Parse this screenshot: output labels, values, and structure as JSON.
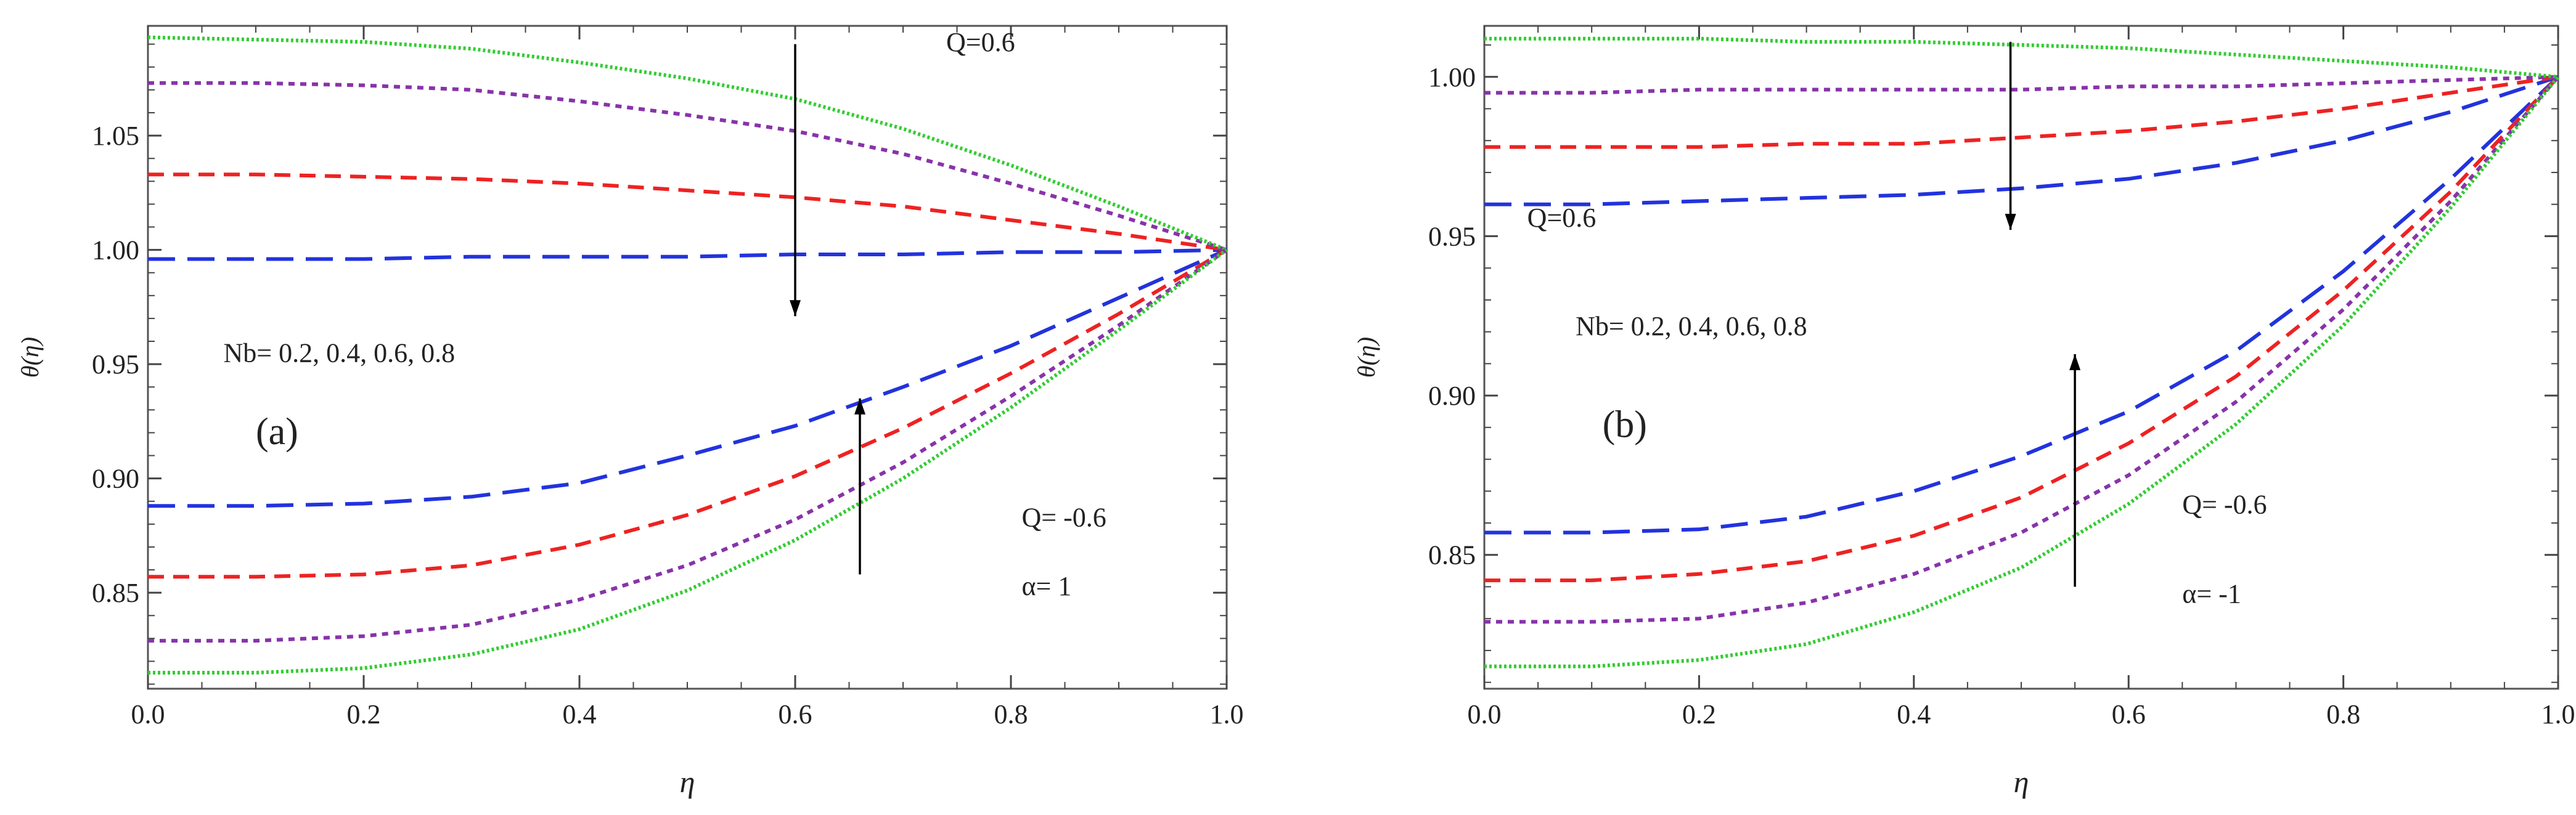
{
  "figure": {
    "panels": [
      "(a)",
      "(b)"
    ]
  },
  "chart_data": [
    {
      "type": "line",
      "panel_label": "(a)",
      "title": "",
      "xlabel": "η",
      "ylabel": "θ(η)",
      "xlim": [
        0.0,
        1.0
      ],
      "ylim": [
        0.808,
        1.098
      ],
      "xticks": [
        "0.0",
        "0.2",
        "0.4",
        "0.6",
        "0.8",
        "1.0"
      ],
      "yticks": [
        "0.85",
        "0.90",
        "0.95",
        "1.00",
        "1.05"
      ],
      "yticks_values": [
        0.85,
        0.9,
        0.95,
        1.0,
        1.05
      ],
      "grid": false,
      "x": [
        0.0,
        0.1,
        0.2,
        0.3,
        0.4,
        0.5,
        0.6,
        0.7,
        0.8,
        0.9,
        1.0
      ],
      "series": [
        {
          "name": "Nb=0.2, Q=0.6",
          "group": "Q=0.6",
          "color": "#2233dd",
          "dash": "long",
          "values": [
            0.996,
            0.996,
            0.996,
            0.997,
            0.997,
            0.997,
            0.998,
            0.998,
            0.999,
            0.999,
            1.0
          ]
        },
        {
          "name": "Nb=0.4, Q=0.6",
          "group": "Q=0.6",
          "color": "#ee2222",
          "dash": "medium",
          "values": [
            1.033,
            1.033,
            1.032,
            1.031,
            1.029,
            1.026,
            1.023,
            1.019,
            1.013,
            1.007,
            1.0
          ]
        },
        {
          "name": "Nb=0.6, Q=0.6",
          "group": "Q=0.6",
          "color": "#8833aa",
          "dash": "short",
          "values": [
            1.073,
            1.073,
            1.072,
            1.07,
            1.065,
            1.059,
            1.052,
            1.042,
            1.029,
            1.015,
            1.0
          ]
        },
        {
          "name": "Nb=0.8, Q=0.6",
          "group": "Q=0.6",
          "color": "#33cc33",
          "dash": "dot",
          "values": [
            1.093,
            1.092,
            1.091,
            1.088,
            1.082,
            1.075,
            1.066,
            1.053,
            1.037,
            1.019,
            1.0
          ]
        },
        {
          "name": "Nb=0.2, Q=-0.6",
          "group": "Q=-0.6",
          "color": "#2233dd",
          "dash": "long",
          "values": [
            0.888,
            0.888,
            0.889,
            0.892,
            0.898,
            0.91,
            0.923,
            0.94,
            0.958,
            0.979,
            1.0
          ]
        },
        {
          "name": "Nb=0.4, Q=-0.6",
          "group": "Q=-0.6",
          "color": "#ee2222",
          "dash": "medium",
          "values": [
            0.857,
            0.857,
            0.858,
            0.862,
            0.871,
            0.884,
            0.901,
            0.922,
            0.946,
            0.972,
            1.0
          ]
        },
        {
          "name": "Nb=0.6, Q=-0.6",
          "group": "Q=-0.6",
          "color": "#8833aa",
          "dash": "short",
          "values": [
            0.829,
            0.829,
            0.831,
            0.836,
            0.847,
            0.862,
            0.882,
            0.907,
            0.936,
            0.967,
            1.0
          ]
        },
        {
          "name": "Nb=0.8, Q=-0.6",
          "group": "Q=-0.6",
          "color": "#33cc33",
          "dash": "dot",
          "values": [
            0.815,
            0.815,
            0.817,
            0.823,
            0.834,
            0.851,
            0.873,
            0.9,
            0.931,
            0.965,
            1.0
          ]
        }
      ],
      "arrows": [
        {
          "x": 0.6,
          "from": 1.09,
          "to": 0.971
        },
        {
          "x": 0.66,
          "from": 0.858,
          "to": 0.935
        }
      ],
      "annotations": [
        {
          "text": "Q=0.6",
          "x": 0.74,
          "y": 1.087
        },
        {
          "text": "Nb= 0.2, 0.4, 0.6, 0.8",
          "x": 0.07,
          "y": 0.951
        },
        {
          "text": "(a)",
          "x": 0.1,
          "y": 0.915
        },
        {
          "text": "Q= -0.6",
          "x": 0.81,
          "y": 0.879
        },
        {
          "text": "α= 1",
          "x": 0.81,
          "y": 0.849
        }
      ]
    },
    {
      "type": "line",
      "panel_label": "(b)",
      "title": "",
      "xlabel": "η",
      "ylabel": "θ(η)",
      "xlim": [
        0.0,
        1.0
      ],
      "ylim": [
        0.808,
        1.016
      ],
      "xticks": [
        "0.0",
        "0.2",
        "0.4",
        "0.6",
        "0.8",
        "1.0"
      ],
      "yticks": [
        "0.85",
        "0.90",
        "0.95",
        "1.00"
      ],
      "yticks_values": [
        0.85,
        0.9,
        0.95,
        1.0
      ],
      "grid": false,
      "x": [
        0.0,
        0.1,
        0.2,
        0.3,
        0.4,
        0.5,
        0.6,
        0.7,
        0.8,
        0.9,
        1.0
      ],
      "series": [
        {
          "name": "Nb=0.2, Q=0.6",
          "group": "Q=0.6",
          "color": "#2233dd",
          "dash": "long",
          "values": [
            0.96,
            0.96,
            0.961,
            0.962,
            0.963,
            0.965,
            0.968,
            0.973,
            0.98,
            0.989,
            1.0
          ]
        },
        {
          "name": "Nb=0.4, Q=0.6",
          "group": "Q=0.6",
          "color": "#ee2222",
          "dash": "medium",
          "values": [
            0.978,
            0.978,
            0.978,
            0.979,
            0.979,
            0.981,
            0.983,
            0.986,
            0.99,
            0.995,
            1.0
          ]
        },
        {
          "name": "Nb=0.6, Q=0.6",
          "group": "Q=0.6",
          "color": "#8833aa",
          "dash": "short",
          "values": [
            0.995,
            0.995,
            0.996,
            0.996,
            0.996,
            0.996,
            0.997,
            0.997,
            0.998,
            0.999,
            1.0
          ]
        },
        {
          "name": "Nb=0.8, Q=0.6",
          "group": "Q=0.6",
          "color": "#33cc33",
          "dash": "dot",
          "values": [
            1.012,
            1.012,
            1.012,
            1.011,
            1.011,
            1.01,
            1.009,
            1.007,
            1.005,
            1.003,
            1.0
          ]
        },
        {
          "name": "Nb=0.2, Q=-0.6",
          "group": "Q=-0.6",
          "color": "#2233dd",
          "dash": "long",
          "values": [
            0.857,
            0.857,
            0.858,
            0.862,
            0.87,
            0.881,
            0.895,
            0.914,
            0.939,
            0.968,
            1.0
          ]
        },
        {
          "name": "Nb=0.4, Q=-0.6",
          "group": "Q=-0.6",
          "color": "#ee2222",
          "dash": "medium",
          "values": [
            0.842,
            0.842,
            0.844,
            0.848,
            0.856,
            0.868,
            0.885,
            0.906,
            0.933,
            0.964,
            1.0
          ]
        },
        {
          "name": "Nb=0.6, Q=-0.6",
          "group": "Q=-0.6",
          "color": "#8833aa",
          "dash": "short",
          "values": [
            0.829,
            0.829,
            0.83,
            0.835,
            0.844,
            0.857,
            0.875,
            0.898,
            0.927,
            0.961,
            1.0
          ]
        },
        {
          "name": "Nb=0.8, Q=-0.6",
          "group": "Q=-0.6",
          "color": "#33cc33",
          "dash": "dot",
          "values": [
            0.815,
            0.815,
            0.817,
            0.822,
            0.832,
            0.846,
            0.866,
            0.891,
            0.922,
            0.959,
            1.0
          ]
        }
      ],
      "arrows": [
        {
          "x": 0.49,
          "from": 1.011,
          "to": 0.952
        },
        {
          "x": 0.55,
          "from": 0.84,
          "to": 0.913
        }
      ],
      "annotations": [
        {
          "text": "Q=0.6",
          "x": 0.04,
          "y": 0.953
        },
        {
          "text": "Nb= 0.2, 0.4, 0.6, 0.8",
          "x": 0.085,
          "y": 0.919
        },
        {
          "text": "(b)",
          "x": 0.11,
          "y": 0.887
        },
        {
          "text": "Q= -0.6",
          "x": 0.65,
          "y": 0.863
        },
        {
          "text": "α= -1",
          "x": 0.65,
          "y": 0.835
        }
      ]
    }
  ]
}
